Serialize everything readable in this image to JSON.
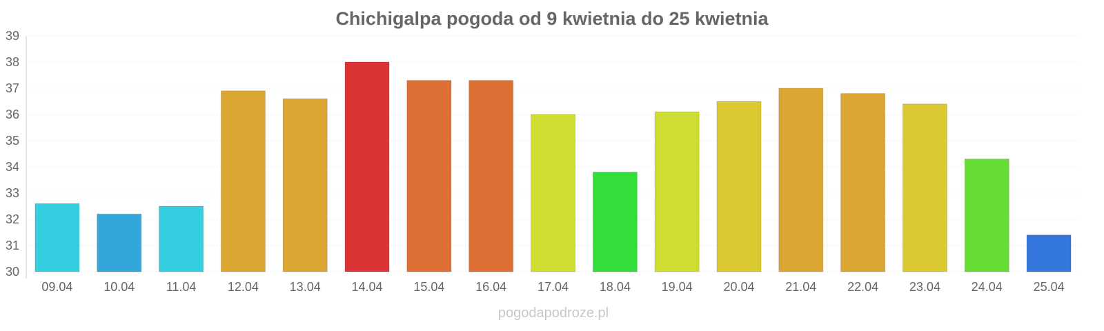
{
  "chart_data": {
    "type": "bar",
    "title": "Chichigalpa pogoda od 9 kwietnia do 25 kwietnia",
    "xlabel": "",
    "ylabel": "",
    "ylim": [
      30,
      39
    ],
    "yticks": [
      "30",
      "31",
      "32",
      "33",
      "34",
      "35",
      "36",
      "37",
      "38",
      "39"
    ],
    "grid": true,
    "categories": [
      "09.04",
      "10.04",
      "11.04",
      "12.04",
      "13.04",
      "14.04",
      "15.04",
      "16.04",
      "17.04",
      "18.04",
      "19.04",
      "20.04",
      "21.04",
      "22.04",
      "23.04",
      "24.04",
      "25.04"
    ],
    "values": [
      32.6,
      32.2,
      32.5,
      36.9,
      36.6,
      38.0,
      37.3,
      37.3,
      36.0,
      33.8,
      36.1,
      36.5,
      37.0,
      36.8,
      36.4,
      34.3,
      31.4
    ],
    "colors": [
      "#33cfe0",
      "#33a6dc",
      "#33cfe0",
      "#dba732",
      "#dba732",
      "#dc3434",
      "#dd7034",
      "#dd7034",
      "#cfdd33",
      "#33dd3a",
      "#cfdd33",
      "#dbc932",
      "#dba732",
      "#dba732",
      "#dbc932",
      "#66dd33",
      "#3377dd"
    ]
  },
  "watermark": "pogodapodroze.pl"
}
